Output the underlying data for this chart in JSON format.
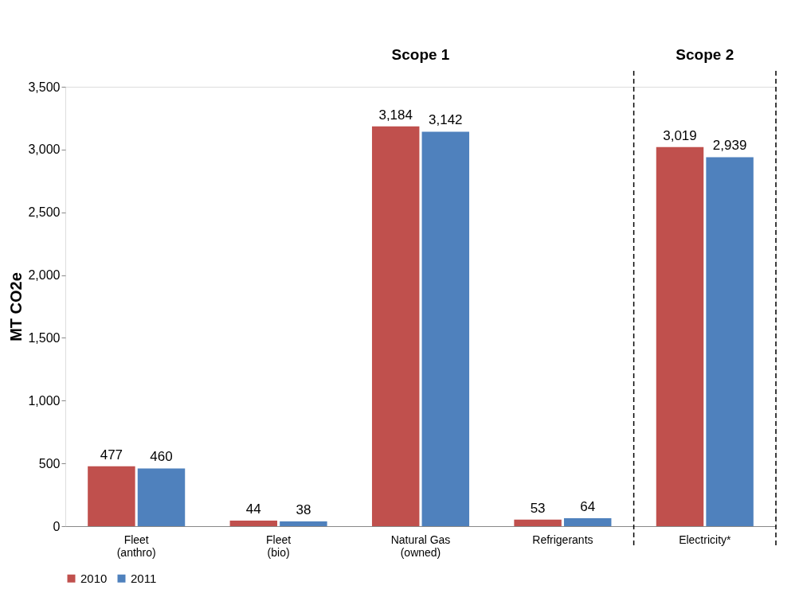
{
  "chart_data": {
    "type": "bar",
    "categories": [
      "Fleet\n(anthro)",
      "Fleet\n(bio)",
      "Natural Gas\n(owned)",
      "Refrigerants",
      "Electricity*"
    ],
    "series": [
      {
        "name": "2010",
        "color": "#c0504d",
        "values": [
          477,
          44,
          3184,
          53,
          3019
        ],
        "value_labels": [
          "477",
          "44",
          "3,184",
          "53",
          "3,019"
        ]
      },
      {
        "name": "2011",
        "color": "#4f81bd",
        "values": [
          460,
          38,
          3142,
          64,
          2939
        ],
        "value_labels": [
          "460",
          "38",
          "3,142",
          "64",
          "2,939"
        ]
      }
    ],
    "ylabel": "MT CO2e",
    "ylim": [
      0,
      3500
    ],
    "yticks": [
      0,
      {
        "value": 500,
        "label": "500"
      },
      {
        "value": 1000,
        "label": "1,000"
      },
      {
        "value": 1500,
        "label": "1,500"
      },
      {
        "value": 2000,
        "label": "2,000"
      },
      {
        "value": 2500,
        "label": "2,500"
      },
      {
        "value": 3000,
        "label": "3,000"
      },
      {
        "value": 3500,
        "label": "3,500"
      }
    ],
    "annotations": [
      "Scope 1",
      "Scope 2"
    ],
    "grid": false,
    "legend": "bottom"
  }
}
